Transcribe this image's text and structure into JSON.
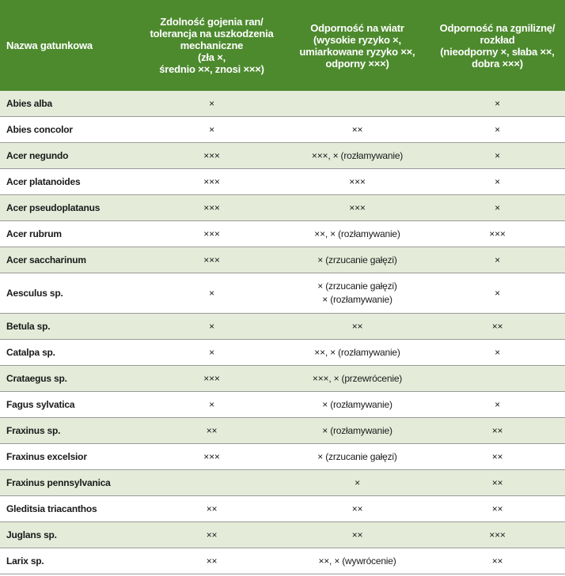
{
  "headers": {
    "name": "Nazwa gatunkowa",
    "wound": [
      "Zdolność gojenia ran/",
      "tolerancja na uszkodzenia",
      "mechaniczne",
      "(zła ×,",
      "średnio ××, znosi ×××)"
    ],
    "wind": [
      "Odporność na wiatr",
      "(wysokie ryzyko ×,",
      "umiarkowane ryzyko ××,",
      "odporny ×××)"
    ],
    "decay": [
      "Odporność na zgniliznę/",
      "rozkład",
      "(nieodporny ×, słaba ××,",
      "dobra ×××)"
    ]
  },
  "rows": [
    {
      "name": "Abies alba",
      "wound": "×",
      "wind": [
        ""
      ],
      "decay": "×"
    },
    {
      "name": "Abies concolor",
      "wound": "×",
      "wind": [
        "××"
      ],
      "decay": "×"
    },
    {
      "name": "Acer negundo",
      "wound": "×××",
      "wind": [
        "×××, × (rozłamywanie)"
      ],
      "decay": "×"
    },
    {
      "name": "Acer platanoides",
      "wound": "×××",
      "wind": [
        "×××"
      ],
      "decay": "×"
    },
    {
      "name": "Acer pseudoplatanus",
      "wound": "×××",
      "wind": [
        "×××"
      ],
      "decay": "×"
    },
    {
      "name": "Acer rubrum",
      "wound": "×××",
      "wind": [
        "××, × (rozłamywanie)"
      ],
      "decay": "×××"
    },
    {
      "name": "Acer saccharinum",
      "wound": "×××",
      "wind": [
        "× (zrzucanie gałęzi)"
      ],
      "decay": "×"
    },
    {
      "name": "Aesculus sp.",
      "wound": "×",
      "wind": [
        "× (zrzucanie gałęzi)",
        "× (rozłamywanie)"
      ],
      "decay": "×"
    },
    {
      "name": "Betula sp.",
      "wound": "×",
      "wind": [
        "××"
      ],
      "decay": "××"
    },
    {
      "name": "Catalpa sp.",
      "wound": "×",
      "wind": [
        "××, × (rozłamywanie)"
      ],
      "decay": "×"
    },
    {
      "name": "Crataegus sp.",
      "wound": "×××",
      "wind": [
        "×××, × (przewrócenie)"
      ],
      "decay": ""
    },
    {
      "name": "Fagus sylvatica",
      "wound": "×",
      "wind": [
        "× (rozłamywanie)"
      ],
      "decay": "×"
    },
    {
      "name": "Fraxinus sp.",
      "wound": "××",
      "wind": [
        "× (rozłamywanie)"
      ],
      "decay": "××"
    },
    {
      "name": "Fraxinus excelsior",
      "wound": "×××",
      "wind": [
        "× (zrzucanie gałęzi)"
      ],
      "decay": "××"
    },
    {
      "name": "Fraxinus pennsylvanica",
      "wound": "",
      "wind": [
        "×"
      ],
      "decay": "××"
    },
    {
      "name": "Gleditsia triacanthos",
      "wound": "××",
      "wind": [
        "××"
      ],
      "decay": "××"
    },
    {
      "name": "Juglans sp.",
      "wound": "××",
      "wind": [
        "××"
      ],
      "decay": "×××"
    },
    {
      "name": "Larix sp.",
      "wound": "××",
      "wind": [
        "××, × (wywrócenie)"
      ],
      "decay": "××"
    }
  ]
}
